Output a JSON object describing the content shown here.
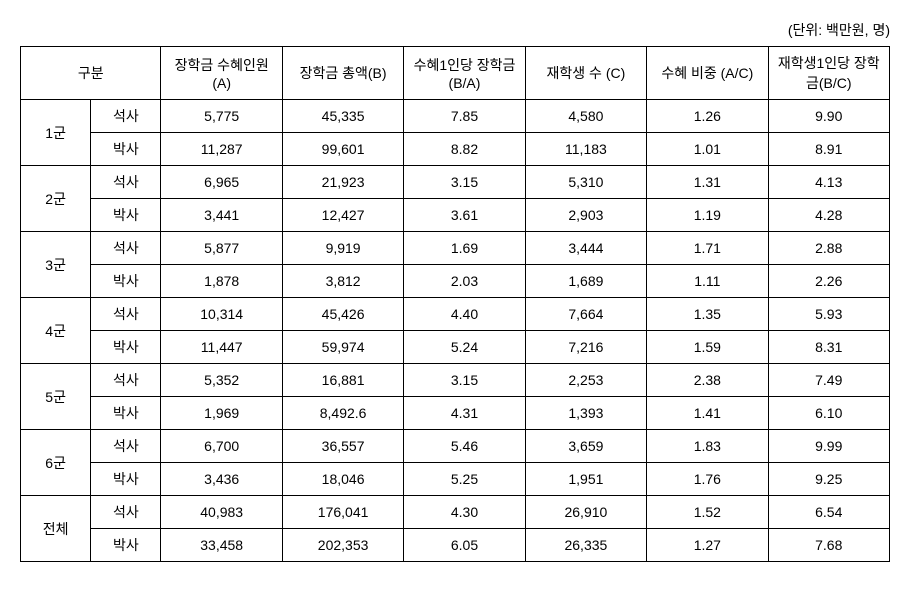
{
  "unit_label": "(단위: 백만원, 명)",
  "headers": {
    "category": "구분",
    "col1": "장학금 수혜인원(A)",
    "col2": "장학금 총액(B)",
    "col3": "수혜1인당 장학금(B/A)",
    "col4": "재학생 수 (C)",
    "col5": "수혜 비중 (A/C)",
    "col6": "재학생1인당 장학금(B/C)"
  },
  "groups": [
    {
      "name": "1군",
      "rows": [
        {
          "degree": "석사",
          "c1": "5,775",
          "c2": "45,335",
          "c3": "7.85",
          "c4": "4,580",
          "c5": "1.26",
          "c6": "9.90"
        },
        {
          "degree": "박사",
          "c1": "11,287",
          "c2": "99,601",
          "c3": "8.82",
          "c4": "11,183",
          "c5": "1.01",
          "c6": "8.91"
        }
      ]
    },
    {
      "name": "2군",
      "rows": [
        {
          "degree": "석사",
          "c1": "6,965",
          "c2": "21,923",
          "c3": "3.15",
          "c4": "5,310",
          "c5": "1.31",
          "c6": "4.13"
        },
        {
          "degree": "박사",
          "c1": "3,441",
          "c2": "12,427",
          "c3": "3.61",
          "c4": "2,903",
          "c5": "1.19",
          "c6": "4.28"
        }
      ]
    },
    {
      "name": "3군",
      "rows": [
        {
          "degree": "석사",
          "c1": "5,877",
          "c2": "9,919",
          "c3": "1.69",
          "c4": "3,444",
          "c5": "1.71",
          "c6": "2.88"
        },
        {
          "degree": "박사",
          "c1": "1,878",
          "c2": "3,812",
          "c3": "2.03",
          "c4": "1,689",
          "c5": "1.11",
          "c6": "2.26"
        }
      ]
    },
    {
      "name": "4군",
      "rows": [
        {
          "degree": "석사",
          "c1": "10,314",
          "c2": "45,426",
          "c3": "4.40",
          "c4": "7,664",
          "c5": "1.35",
          "c6": "5.93"
        },
        {
          "degree": "박사",
          "c1": "11,447",
          "c2": "59,974",
          "c3": "5.24",
          "c4": "7,216",
          "c5": "1.59",
          "c6": "8.31"
        }
      ]
    },
    {
      "name": "5군",
      "rows": [
        {
          "degree": "석사",
          "c1": "5,352",
          "c2": "16,881",
          "c3": "3.15",
          "c4": "2,253",
          "c5": "2.38",
          "c6": "7.49"
        },
        {
          "degree": "박사",
          "c1": "1,969",
          "c2": "8,492.6",
          "c3": "4.31",
          "c4": "1,393",
          "c5": "1.41",
          "c6": "6.10"
        }
      ]
    },
    {
      "name": "6군",
      "rows": [
        {
          "degree": "석사",
          "c1": "6,700",
          "c2": "36,557",
          "c3": "5.46",
          "c4": "3,659",
          "c5": "1.83",
          "c6": "9.99"
        },
        {
          "degree": "박사",
          "c1": "3,436",
          "c2": "18,046",
          "c3": "5.25",
          "c4": "1,951",
          "c5": "1.76",
          "c6": "9.25"
        }
      ]
    },
    {
      "name": "전체",
      "rows": [
        {
          "degree": "석사",
          "c1": "40,983",
          "c2": "176,041",
          "c3": "4.30",
          "c4": "26,910",
          "c5": "1.52",
          "c6": "6.54"
        },
        {
          "degree": "박사",
          "c1": "33,458",
          "c2": "202,353",
          "c3": "6.05",
          "c4": "26,335",
          "c5": "1.27",
          "c6": "7.68"
        }
      ]
    }
  ]
}
